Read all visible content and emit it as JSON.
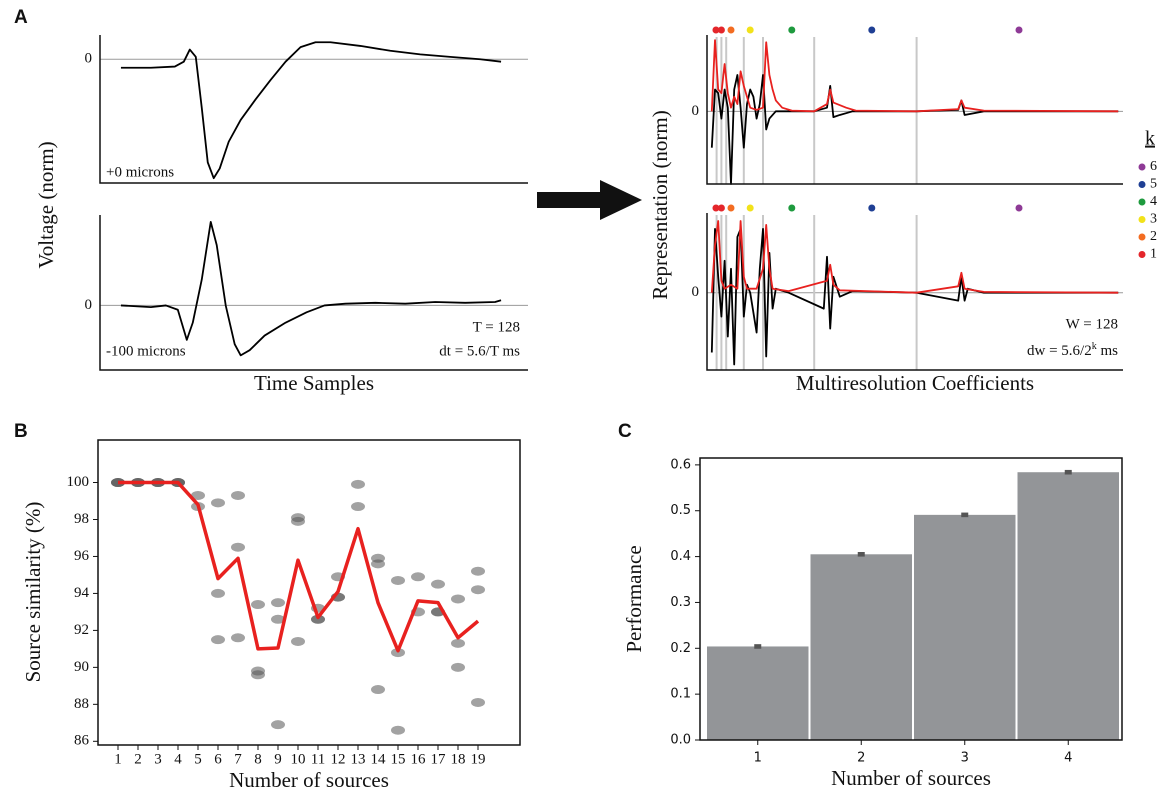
{
  "panel_labels": [
    "A",
    "B",
    "C"
  ],
  "panel_a_left": {
    "ylabel": "Voltage (norm)",
    "xlabel": "Time Samples"
  },
  "panel_a_right": {
    "ylabel": "Representation (norm)",
    "xlabel": "Multiresolution Coefficients",
    "legend": {
      "title": "k",
      "labels": [
        "6",
        "5",
        "4",
        "3",
        "2",
        "1"
      ],
      "colors": [
        "#8e3a96",
        "#1f3f94",
        "#1e9a3e",
        "#f2e21a",
        "#f36c21",
        "#e4262b"
      ]
    }
  },
  "chart_data": [
    {
      "type": "line",
      "xlim": [
        -7,
        136
      ],
      "ylim": [
        -1.02,
        0.2
      ],
      "yticks": [
        0
      ],
      "grid": true,
      "annotations": [
        "+0 microns"
      ],
      "series": [
        {
          "color": "#000000",
          "x": [
            0,
            10,
            18,
            21,
            23,
            25,
            27,
            29,
            31,
            33,
            36,
            40,
            45,
            50,
            55,
            60,
            65,
            70,
            80,
            90,
            100,
            110,
            120,
            127
          ],
          "values": [
            -0.07,
            -0.07,
            -0.06,
            -0.02,
            0.08,
            0.02,
            -0.4,
            -0.85,
            -0.98,
            -0.9,
            -0.68,
            -0.5,
            -0.33,
            -0.17,
            -0.02,
            0.1,
            0.14,
            0.14,
            0.11,
            0.07,
            0.04,
            0.02,
            0.0,
            -0.02
          ]
        }
      ]
    },
    {
      "type": "line",
      "xlim": [
        -7,
        136
      ],
      "ylim": [
        -0.75,
        1.05
      ],
      "yticks": [
        0
      ],
      "grid": true,
      "annotations": [
        "-100 microns",
        "T = 128",
        "dt = 5.6/T ms"
      ],
      "series": [
        {
          "color": "#000000",
          "x": [
            0,
            10,
            15,
            19,
            22,
            24,
            27,
            30,
            32,
            35,
            38,
            40,
            43,
            48,
            55,
            62,
            68,
            75,
            85,
            95,
            105,
            115,
            125,
            127
          ],
          "values": [
            0,
            -0.02,
            0,
            -0.05,
            -0.4,
            -0.2,
            0.3,
            0.97,
            0.7,
            0.0,
            -0.45,
            -0.58,
            -0.52,
            -0.35,
            -0.2,
            -0.08,
            0.0,
            0.02,
            0.03,
            0.02,
            0.04,
            0.03,
            0.04,
            0.06
          ]
        }
      ]
    },
    {
      "type": "line",
      "xlim": [
        -1.5,
        128.5
      ],
      "ylim": [
        -1,
        1.05
      ],
      "yticks": [
        0
      ],
      "grid": true,
      "vlines": [
        1.5,
        3,
        4.5,
        10,
        16,
        32,
        64
      ],
      "vline_color": "#c8c8c8",
      "markers": {
        "x": [
          1.3,
          3,
          6,
          12,
          25,
          50,
          96
        ],
        "colors": [
          "#e4262b",
          "#e4262b",
          "#f36c21",
          "#f2e21a",
          "#1e9a3e",
          "#1f3f94",
          "#8e3a96"
        ]
      },
      "series": [
        {
          "color": "#000000",
          "x": [
            0,
            1,
            2,
            3,
            4,
            5,
            6,
            7,
            8,
            9,
            10,
            11,
            12,
            13,
            14,
            15,
            16,
            17,
            18,
            19,
            20,
            32,
            36,
            37,
            38,
            40,
            44,
            64,
            77,
            78,
            79,
            85,
            127
          ],
          "values": [
            -0.5,
            0.3,
            0.25,
            -0.1,
            0.3,
            0.05,
            -1.0,
            0.3,
            0.5,
            0.05,
            -0.5,
            0.1,
            0.3,
            0.2,
            -0.1,
            0.1,
            0.5,
            -0.25,
            -0.1,
            -0.05,
            0,
            0,
            0.05,
            0.35,
            -0.08,
            -0.05,
            0,
            0,
            0.02,
            0.15,
            -0.05,
            0,
            0
          ]
        },
        {
          "color": "#e8211f",
          "x": [
            0,
            1,
            2,
            3,
            4,
            5,
            6,
            7,
            8,
            9,
            10,
            11,
            12,
            14,
            16,
            17,
            18,
            19,
            20,
            22,
            25,
            32,
            36,
            37,
            38,
            42,
            45,
            64,
            77,
            78,
            79,
            85,
            127
          ],
          "values": [
            0,
            0.98,
            0.3,
            0.25,
            0.65,
            0.25,
            0.05,
            0.2,
            0.1,
            0.55,
            0.35,
            0.2,
            0.05,
            0.02,
            0.05,
            0.95,
            0.5,
            0.3,
            0.15,
            0.05,
            0.01,
            0,
            0.1,
            0.3,
            0.12,
            0.05,
            0.01,
            0,
            0.03,
            0.15,
            0.05,
            0.01,
            0
          ]
        }
      ]
    },
    {
      "type": "line",
      "xlim": [
        -1.5,
        128.5
      ],
      "ylim": [
        -0.97,
        1.0
      ],
      "yticks": [
        0
      ],
      "grid": true,
      "vlines": [
        1.5,
        3,
        4.5,
        10,
        16,
        32,
        64
      ],
      "vline_color": "#c8c8c8",
      "markers": {
        "x": [
          1.3,
          3,
          6,
          12,
          25,
          50,
          96
        ],
        "colors": [
          "#e4262b",
          "#e4262b",
          "#f36c21",
          "#f2e21a",
          "#1e9a3e",
          "#1f3f94",
          "#8e3a96"
        ]
      },
      "annotations": [
        "W = 128",
        [
          "dw = 5.6/2",
          "k",
          " ms"
        ]
      ],
      "series": [
        {
          "color": "#000000",
          "x": [
            0,
            1,
            2,
            3,
            4,
            5,
            6,
            7,
            8,
            9,
            10,
            11,
            12,
            14,
            15,
            16,
            17,
            18,
            19,
            20,
            24,
            35,
            36,
            37,
            38,
            40,
            44,
            64,
            77,
            78,
            79,
            80,
            85,
            127
          ],
          "values": [
            -0.75,
            0.8,
            0.2,
            -0.3,
            0.4,
            -0.55,
            0.3,
            -0.9,
            0.7,
            0.8,
            -0.3,
            0.1,
            0,
            -0.5,
            0.3,
            0.8,
            -0.8,
            0.5,
            -0.2,
            0.05,
            0,
            -0.2,
            0.45,
            -0.45,
            0.2,
            -0.05,
            0.02,
            0,
            -0.1,
            0.2,
            -0.1,
            0.05,
            0,
            0
          ]
        },
        {
          "color": "#e8211f",
          "x": [
            0,
            1,
            2,
            3,
            4,
            6,
            8,
            9,
            10,
            11,
            14,
            16,
            17,
            18,
            19,
            24,
            36,
            37,
            38,
            40,
            64,
            77,
            78,
            79,
            85,
            127
          ],
          "values": [
            0,
            0.6,
            0.9,
            0.15,
            0.05,
            0.1,
            0.05,
            0.9,
            0.2,
            0.05,
            0.05,
            0.3,
            0.85,
            0.3,
            0.05,
            0.02,
            0.15,
            0.35,
            0.1,
            0.03,
            0,
            0.08,
            0.25,
            0.05,
            0.01,
            0
          ]
        }
      ]
    },
    {
      "type": "line",
      "xlabel": "Number of sources",
      "ylabel": "Source similarity (%)",
      "x": [
        1,
        2,
        3,
        4,
        5,
        6,
        7,
        8,
        9,
        10,
        11,
        12,
        13,
        14,
        15,
        16,
        17,
        18,
        19
      ],
      "xticks": [
        1,
        2,
        3,
        4,
        5,
        6,
        7,
        8,
        9,
        10,
        11,
        12,
        13,
        14,
        15,
        16,
        17,
        18,
        19
      ],
      "xlim": [
        0,
        21.1
      ],
      "ylim": [
        85.8,
        102.3
      ],
      "yticks": [
        86,
        88,
        90,
        92,
        94,
        96,
        98,
        100
      ],
      "grid": false,
      "scatter": {
        "color": "#555555",
        "x": [
          1,
          1,
          1,
          2,
          2,
          2,
          3,
          3,
          3,
          4,
          4,
          4,
          5,
          5,
          6,
          6,
          6,
          7,
          7,
          7,
          8,
          8,
          8,
          9,
          9,
          9,
          10,
          10,
          10,
          11,
          11,
          11,
          12,
          12,
          12,
          13,
          13,
          14,
          14,
          14,
          15,
          15,
          15,
          16,
          16,
          17,
          17,
          17,
          18,
          18,
          18,
          19,
          19,
          19
        ],
        "values": [
          100,
          100,
          100,
          100,
          100,
          100,
          100,
          100,
          100,
          100,
          100,
          100,
          99.3,
          98.7,
          98.9,
          94,
          91.5,
          99.3,
          96.5,
          91.6,
          93.4,
          89.8,
          89.6,
          93.5,
          92.6,
          86.9,
          98.1,
          97.9,
          91.4,
          93.2,
          92.6,
          92.6,
          94.9,
          93.8,
          93.8,
          99.9,
          98.7,
          95.9,
          95.6,
          88.8,
          94.7,
          90.8,
          86.6,
          94.9,
          93,
          94.5,
          93,
          93,
          93.7,
          91.3,
          90,
          95.2,
          94.2,
          88.1
        ]
      },
      "series": [
        {
          "color": "#e8211f",
          "values": [
            100,
            100,
            100,
            100,
            98.8,
            94.8,
            95.9,
            91,
            91.05,
            95.8,
            92.7,
            94.1,
            97.5,
            93.5,
            90.9,
            93.6,
            93.5,
            91.6,
            92.5
          ]
        }
      ]
    },
    {
      "type": "bar",
      "xlabel": "Number of sources",
      "ylabel": "Performance",
      "categories": [
        "1",
        "2",
        "3",
        "4"
      ],
      "values": [
        0.204,
        0.405,
        0.491,
        0.584
      ],
      "errors": [
        0.005,
        0.005,
        0.005,
        0.005
      ],
      "color": "#939598",
      "error_color": "#555555",
      "ylim": [
        0,
        0.615
      ],
      "yticks": [
        {
          "value": 0,
          "label": "0.0"
        },
        0.1,
        0.2,
        0.3,
        0.4,
        0.5,
        0.6
      ],
      "grid": false
    }
  ]
}
